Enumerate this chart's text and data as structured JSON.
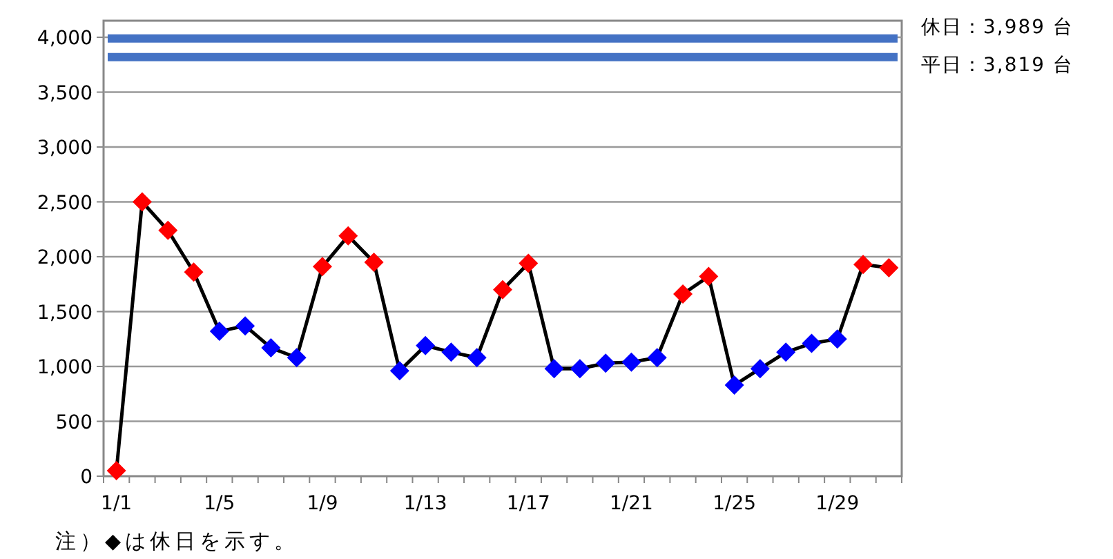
{
  "chart_data": {
    "type": "line",
    "categories": [
      "1/1",
      null,
      null,
      null,
      "1/5",
      null,
      null,
      null,
      "1/9",
      null,
      null,
      null,
      "1/13",
      null,
      null,
      null,
      "1/17",
      null,
      null,
      null,
      "1/21",
      null,
      null,
      null,
      "1/25",
      null,
      null,
      null,
      "1/29",
      null,
      null
    ],
    "series": [
      {
        "color": "#000000",
        "colors": [
          "#ff0000",
          "#ff0000",
          "#ff0000",
          "#ff0000",
          "#0000ff",
          "#0000ff",
          "#0000ff",
          "#0000ff",
          "#ff0000",
          "#ff0000",
          "#ff0000",
          "#0000ff",
          "#0000ff",
          "#0000ff",
          "#0000ff",
          "#ff0000",
          "#ff0000",
          "#0000ff",
          "#0000ff",
          "#0000ff",
          "#0000ff",
          "#0000ff",
          "#ff0000",
          "#ff0000",
          "#0000ff",
          "#0000ff",
          "#0000ff",
          "#0000ff",
          "#0000ff",
          "#ff0000",
          "#ff0000"
        ],
        "values": [
          50,
          2500,
          2240,
          1860,
          1320,
          1370,
          1170,
          1080,
          1910,
          2190,
          1950,
          960,
          1190,
          1130,
          1080,
          1700,
          1940,
          980,
          980,
          1030,
          1040,
          1080,
          1660,
          1820,
          830,
          980,
          1130,
          1210,
          1250,
          1930,
          1900
        ]
      }
    ],
    "ylim": [
      0,
      4000
    ],
    "yticks": [
      {
        "value": 0,
        "label": "0"
      },
      {
        "value": 500,
        "label": "500"
      },
      {
        "value": 1000,
        "label": "1,000"
      },
      {
        "value": 1500,
        "label": "1,500"
      },
      {
        "value": 2000,
        "label": "2,000"
      },
      {
        "value": 2500,
        "label": "2,500"
      },
      {
        "value": 3000,
        "label": "3,000"
      },
      {
        "value": 3500,
        "label": "3,500"
      },
      {
        "value": 4000,
        "label": "4,000"
      }
    ],
    "grid": "y",
    "marker": "diamond",
    "line_style": "solid",
    "ref_lines": [
      {
        "axis": "y",
        "value": 3989,
        "label": "休日：3,989 台",
        "color": "#4472c4"
      },
      {
        "axis": "y",
        "value": 3819,
        "label": "平日：3,819 台",
        "color": "#4472c4"
      }
    ],
    "annotations": [
      "注）◆は休日を示す。"
    ]
  }
}
